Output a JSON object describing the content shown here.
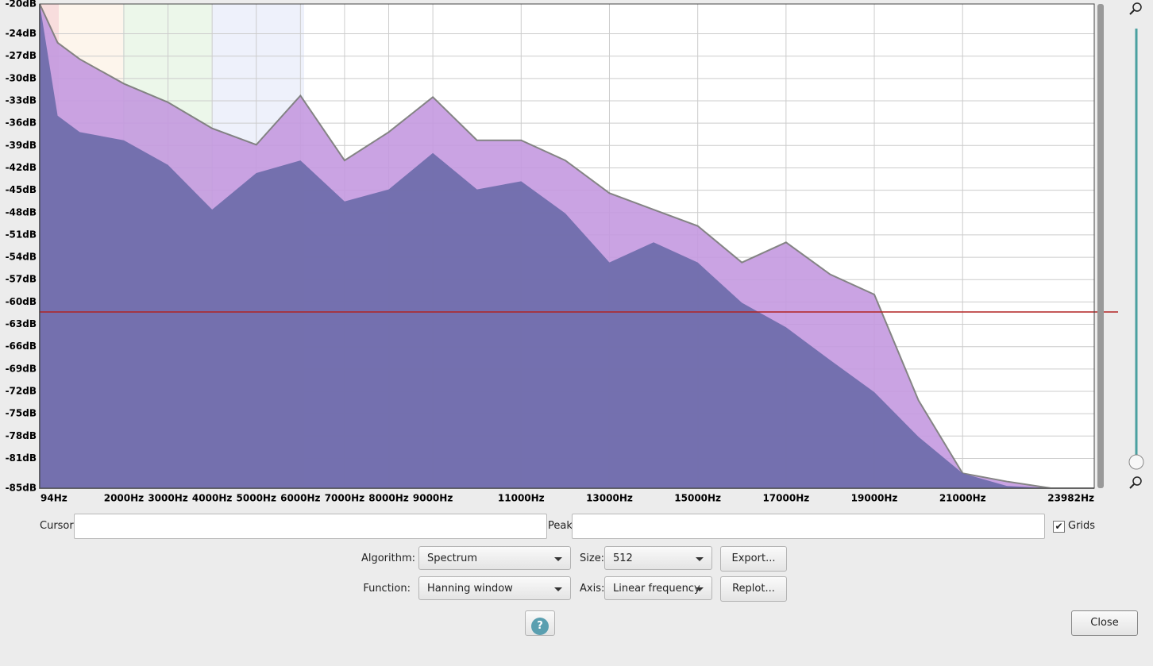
{
  "chart_data": {
    "type": "area",
    "x": [
      94,
      500,
      1000,
      2000,
      3000,
      4000,
      5000,
      6000,
      7000,
      8000,
      9000,
      10000,
      11000,
      12000,
      13000,
      14000,
      15000,
      16000,
      17000,
      18000,
      19000,
      20000,
      21000,
      22000,
      23000,
      23982
    ],
    "series": [
      {
        "color": "#c59ae0",
        "values": [
          -20,
          -25.2,
          -27.4,
          -30.7,
          -33.2,
          -36.7,
          -38.9,
          -32.3,
          -41,
          -37.2,
          -32.5,
          -38.3,
          -38.3,
          -41,
          -45.4,
          -47.6,
          -49.8,
          -54.7,
          -52,
          -56.3,
          -59,
          -73.2,
          -83,
          -84.1,
          -85,
          -85
        ]
      },
      {
        "color": "#6a6aa8",
        "values": [
          -20,
          -35,
          -37.2,
          -38.3,
          -41.6,
          -47.6,
          -42.7,
          -41,
          -46.5,
          -44.9,
          -40,
          -44.9,
          -43.8,
          -48.1,
          -54.7,
          -52,
          -54.7,
          -60.1,
          -63.4,
          -67.8,
          -72.1,
          -78.1,
          -83,
          -84.7,
          -85,
          -85
        ]
      }
    ],
    "xlim": [
      94,
      23982
    ],
    "ylim": [
      -85,
      -20
    ],
    "xticks": [
      {
        "value": 94,
        "label": "94Hz"
      },
      {
        "value": 2000,
        "label": "2000Hz"
      },
      {
        "value": 3000,
        "label": "3000Hz"
      },
      {
        "value": 4000,
        "label": "4000Hz"
      },
      {
        "value": 5000,
        "label": "5000Hz"
      },
      {
        "value": 6000,
        "label": "6000Hz"
      },
      {
        "value": 7000,
        "label": "7000Hz"
      },
      {
        "value": 8000,
        "label": "8000Hz"
      },
      {
        "value": 9000,
        "label": "9000Hz"
      },
      {
        "value": 11000,
        "label": "11000Hz"
      },
      {
        "value": 13000,
        "label": "13000Hz"
      },
      {
        "value": 15000,
        "label": "15000Hz"
      },
      {
        "value": 17000,
        "label": "17000Hz"
      },
      {
        "value": 19000,
        "label": "19000Hz"
      },
      {
        "value": 21000,
        "label": "21000Hz"
      },
      {
        "value": 23982,
        "label": "23982Hz"
      }
    ],
    "yticks": [
      {
        "value": -20,
        "label": "-20dB"
      },
      {
        "value": -24,
        "label": "-24dB"
      },
      {
        "value": -27,
        "label": "-27dB"
      },
      {
        "value": -30,
        "label": "-30dB"
      },
      {
        "value": -33,
        "label": "-33dB"
      },
      {
        "value": -36,
        "label": "-36dB"
      },
      {
        "value": -39,
        "label": "-39dB"
      },
      {
        "value": -42,
        "label": "-42dB"
      },
      {
        "value": -45,
        "label": "-45dB"
      },
      {
        "value": -48,
        "label": "-48dB"
      },
      {
        "value": -51,
        "label": "-51dB"
      },
      {
        "value": -54,
        "label": "-54dB"
      },
      {
        "value": -57,
        "label": "-57dB"
      },
      {
        "value": -60,
        "label": "-60dB"
      },
      {
        "value": -63,
        "label": "-63dB"
      },
      {
        "value": -66,
        "label": "-66dB"
      },
      {
        "value": -69,
        "label": "-69dB"
      },
      {
        "value": -72,
        "label": "-72dB"
      },
      {
        "value": -75,
        "label": "-75dB"
      },
      {
        "value": -78,
        "label": "-78dB"
      },
      {
        "value": -81,
        "label": "-81dB"
      },
      {
        "value": -85,
        "label": "-85dB"
      }
    ],
    "grid": true
  },
  "controls": {
    "cursor_label": "Cursor:",
    "peak_label": "Peak:",
    "grids_label": "Grids",
    "grids_checked": true,
    "algorithm_label": "Algorithm:",
    "algorithm": "Spectrum",
    "size_label": "Size:",
    "size": "512",
    "export": "Export...",
    "function_label": "Function:",
    "function": "Hanning window",
    "axis_label": "Axis:",
    "axis": "Linear frequency",
    "replot": "Replot...",
    "help": "?",
    "close": "Close"
  }
}
